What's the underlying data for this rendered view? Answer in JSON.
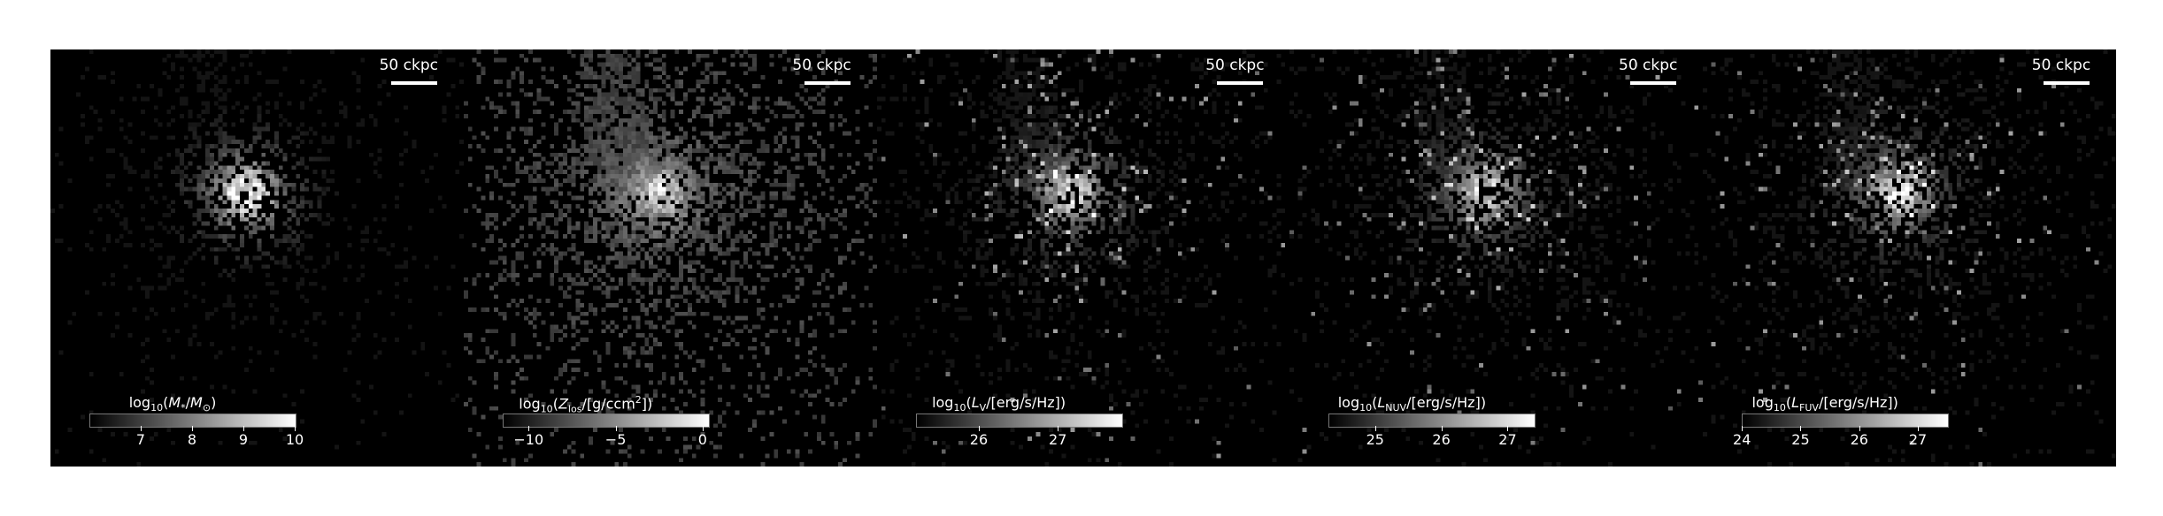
{
  "scale_bar_label": "50 ckpc",
  "panels": [
    {
      "colorbar": {
        "label_html": "log<sub>10</sub>(<i>M</i><sub>*</sub>/<i>M</i><sub>⊙</sub>)",
        "range": [
          6.0,
          10.0
        ],
        "ticks": [
          "7",
          "8",
          "9",
          "10"
        ]
      },
      "style": "stellar"
    },
    {
      "colorbar": {
        "label_html": "log<sub>10</sub>(<i>Z</i><sub>los</sub>/[g/ccm<sup>2</sup>])",
        "range": [
          -11.5,
          0.3
        ],
        "ticks": [
          "−10",
          "−5",
          "0"
        ]
      },
      "style": "metals"
    },
    {
      "colorbar": {
        "label_html": "log<sub>10</sub>(<i>L</i><sub>V</sub>/[erg/s/Hz])",
        "range": [
          25.2,
          27.8
        ],
        "ticks": [
          "26",
          "27"
        ]
      },
      "style": "light"
    },
    {
      "colorbar": {
        "label_html": "log<sub>10</sub>(<i>L</i><sub>NUV</sub>/[erg/s/Hz])",
        "range": [
          24.3,
          27.4
        ],
        "ticks": [
          "25",
          "26",
          "27"
        ]
      },
      "style": "uv"
    },
    {
      "colorbar": {
        "label_html": "log<sub>10</sub>(<i>L</i><sub>FUV</sub>/[erg/s/Hz])",
        "range": [
          24.0,
          27.5
        ],
        "ticks": [
          "24",
          "25",
          "26",
          "27"
        ]
      },
      "style": "uv"
    }
  ]
}
